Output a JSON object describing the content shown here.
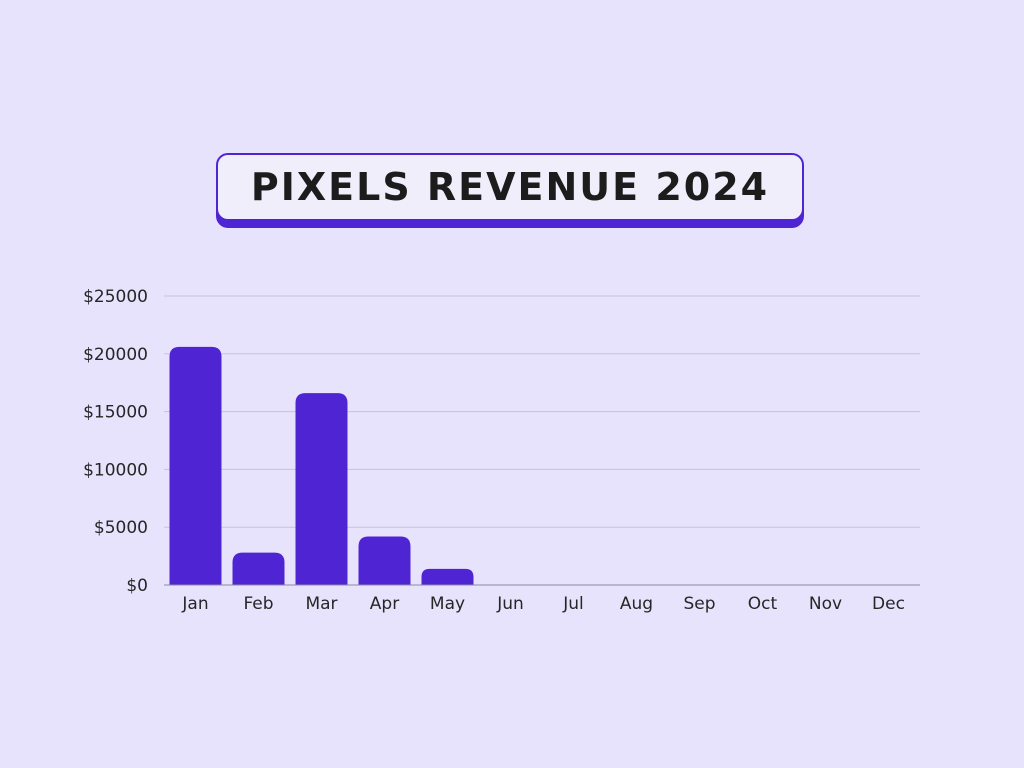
{
  "title": "PIXELS REVENUE 2024",
  "colors": {
    "background": "#e8e3fd",
    "bar": "#4f24d3",
    "title_border": "#4f24d3",
    "gridline": "#c7c1df",
    "axis": "#8d88a3"
  },
  "chart_data": {
    "type": "bar",
    "title": "PIXELS REVENUE 2024",
    "xlabel": "",
    "ylabel": "",
    "categories": [
      "Jan",
      "Feb",
      "Mar",
      "Apr",
      "May",
      "Jun",
      "Jul",
      "Aug",
      "Sep",
      "Oct",
      "Nov",
      "Dec"
    ],
    "values": [
      20600,
      2800,
      16600,
      4200,
      1400,
      0,
      0,
      0,
      0,
      0,
      0,
      0
    ],
    "ylim": [
      0,
      25000
    ],
    "yticks": [
      0,
      5000,
      10000,
      15000,
      20000,
      25000
    ],
    "ytick_labels": [
      "$0",
      "$5000",
      "$10000",
      "$15000",
      "$20000",
      "$25000"
    ],
    "grid": true,
    "legend": "none"
  }
}
